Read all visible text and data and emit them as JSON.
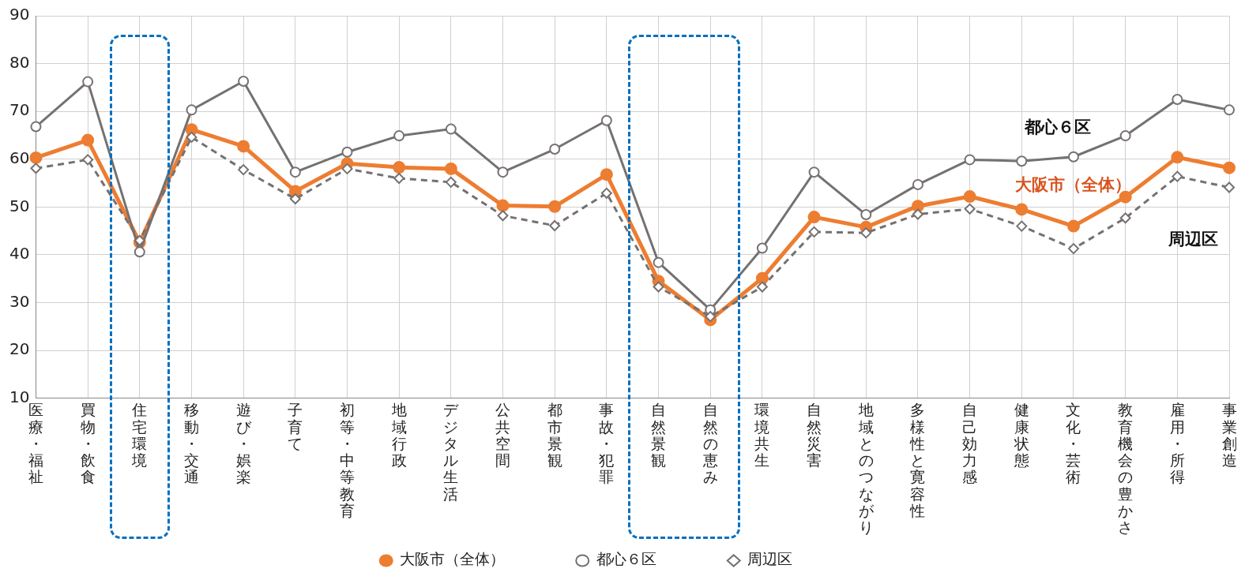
{
  "chart_data": {
    "type": "line",
    "categories": [
      "医療・福祉",
      "買物・飲食",
      "住宅環境",
      "移動・交通",
      "遊び・娯楽",
      "子育て",
      "初等・中等教育",
      "地域行政",
      "デジタル生活",
      "公共空間",
      "都市景観",
      "事故・犯罪",
      "自然景観",
      "自然の恵み",
      "環境共生",
      "自然災害",
      "地域とのつながり",
      "多様性と寛容性",
      "自己効力感",
      "健康状態",
      "文化・芸術",
      "教育機会の豊かさ",
      "雇用・所得",
      "事業創造"
    ],
    "series": [
      {
        "name": "大阪市（全体）",
        "color": "#ed7d31",
        "marker": "circle",
        "line_style": "solid",
        "values": [
          60.3,
          64.0,
          42.6,
          66.2,
          62.7,
          53.3,
          59.1,
          58.3,
          58.0,
          50.3,
          50.1,
          56.8,
          34.5,
          26.4,
          35.1,
          47.9,
          45.8,
          50.2,
          52.2,
          49.5,
          46.0,
          52.1,
          60.4,
          58.2
        ]
      },
      {
        "name": "都心６区",
        "color": "#767171",
        "marker": "circle",
        "line_style": "solid",
        "values": [
          66.8,
          76.2,
          40.6,
          70.3,
          76.3,
          57.3,
          61.5,
          64.9,
          66.3,
          57.3,
          62.1,
          68.1,
          38.4,
          28.5,
          41.4,
          57.3,
          48.4,
          54.7,
          59.9,
          59.6,
          60.5,
          64.9,
          72.5,
          70.3
        ]
      },
      {
        "name": "周辺区",
        "color": "#767171",
        "marker": "diamond",
        "line_style": "dashed",
        "values": [
          58.1,
          59.9,
          43.0,
          64.6,
          57.8,
          51.7,
          58.0,
          56.0,
          55.2,
          48.2,
          46.1,
          52.9,
          33.3,
          27.1,
          33.3,
          44.8,
          44.6,
          48.5,
          49.6,
          46.0,
          41.3,
          47.7,
          56.4,
          54.1
        ]
      }
    ],
    "ylim": [
      10,
      90
    ],
    "yticks": [
      10,
      20,
      30,
      40,
      50,
      60,
      70,
      80,
      90
    ],
    "grid": true,
    "legend": "bottom"
  }
}
